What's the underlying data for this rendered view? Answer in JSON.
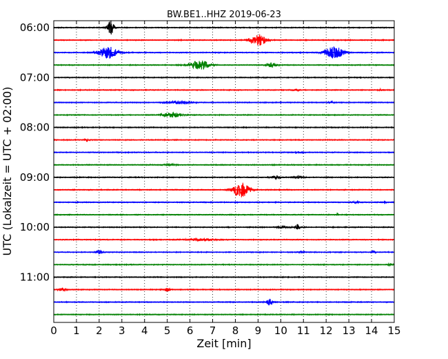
{
  "chart_data": {
    "type": "line",
    "title": "BW.BE1..HHZ 2019-06-23",
    "xlabel": "Zeit  [min]",
    "ylabel": "UTC (Lokalzeit = UTC + 02:00)",
    "xlim": [
      0,
      15
    ],
    "x_ticks": [
      "0",
      "1",
      "2",
      "3",
      "4",
      "5",
      "6",
      "7",
      "8",
      "9",
      "10",
      "11",
      "12",
      "13",
      "14",
      "15"
    ],
    "y_tick_labels": [
      "06:00",
      "07:00",
      "08:00",
      "09:00",
      "10:00",
      "11:00"
    ],
    "grid": "vertical dotted",
    "colors": [
      "#000000",
      "#ff0000",
      "#0000ff",
      "#008000"
    ],
    "series": [
      {
        "name": "06:00",
        "color": "#000000",
        "events": [
          {
            "t": 2.5,
            "amp": 1.0,
            "w": 0.1
          }
        ]
      },
      {
        "name": "06:15",
        "color": "#ff0000",
        "events": [
          {
            "t": 9.0,
            "amp": 0.75,
            "w": 0.25
          }
        ]
      },
      {
        "name": "06:30",
        "color": "#0000ff",
        "events": [
          {
            "t": 2.4,
            "amp": 0.75,
            "w": 0.3
          },
          {
            "t": 12.35,
            "amp": 0.75,
            "w": 0.3
          }
        ]
      },
      {
        "name": "06:45",
        "color": "#008000",
        "events": [
          {
            "t": 6.45,
            "amp": 0.6,
            "w": 0.3
          },
          {
            "t": 9.6,
            "amp": 0.3,
            "w": 0.15
          }
        ]
      },
      {
        "name": "07:00",
        "color": "#000000",
        "events": []
      },
      {
        "name": "07:15",
        "color": "#ff0000",
        "events": [
          {
            "t": 10.7,
            "amp": 0.12,
            "w": 0.1
          },
          {
            "t": 14.4,
            "amp": 0.12,
            "w": 0.05
          }
        ]
      },
      {
        "name": "07:30",
        "color": "#0000ff",
        "events": [
          {
            "t": 5.5,
            "amp": 0.2,
            "w": 0.35
          },
          {
            "t": 12.2,
            "amp": 0.1,
            "w": 0.1
          }
        ]
      },
      {
        "name": "07:45",
        "color": "#008000",
        "events": [
          {
            "t": 5.2,
            "amp": 0.3,
            "w": 0.3
          }
        ]
      },
      {
        "name": "08:00",
        "color": "#000000",
        "events": []
      },
      {
        "name": "08:15",
        "color": "#ff0000",
        "events": [
          {
            "t": 1.5,
            "amp": 0.12,
            "w": 0.1
          }
        ]
      },
      {
        "name": "08:30",
        "color": "#0000ff",
        "events": [
          {
            "t": 10.8,
            "amp": 0.08,
            "w": 0.1
          }
        ]
      },
      {
        "name": "08:45",
        "color": "#008000",
        "events": [
          {
            "t": 5.1,
            "amp": 0.1,
            "w": 0.2
          }
        ]
      },
      {
        "name": "09:00",
        "color": "#000000",
        "events": [
          {
            "t": 9.8,
            "amp": 0.2,
            "w": 0.15
          },
          {
            "t": 10.8,
            "amp": 0.15,
            "w": 0.15
          }
        ]
      },
      {
        "name": "09:15",
        "color": "#ff0000",
        "events": [
          {
            "t": 8.25,
            "amp": 1.0,
            "w": 0.25
          }
        ]
      },
      {
        "name": "09:30",
        "color": "#0000ff",
        "events": [
          {
            "t": 13.3,
            "amp": 0.1,
            "w": 0.15
          },
          {
            "t": 14.6,
            "amp": 0.3,
            "w": 0.03
          }
        ]
      },
      {
        "name": "09:45",
        "color": "#008000",
        "events": [
          {
            "t": 12.5,
            "amp": 0.15,
            "w": 0.03
          }
        ]
      },
      {
        "name": "10:00",
        "color": "#000000",
        "events": [
          {
            "t": 10.75,
            "amp": 0.35,
            "w": 0.06
          },
          {
            "t": 10.2,
            "amp": 0.1,
            "w": 0.3
          }
        ]
      },
      {
        "name": "10:15",
        "color": "#ff0000",
        "events": [
          {
            "t": 6.5,
            "amp": 0.12,
            "w": 0.5
          }
        ]
      },
      {
        "name": "10:30",
        "color": "#0000ff",
        "events": [
          {
            "t": 2.0,
            "amp": 0.25,
            "w": 0.1
          },
          {
            "t": 14.1,
            "amp": 0.2,
            "w": 0.06
          },
          {
            "t": 10.9,
            "amp": 0.1,
            "w": 0.08
          }
        ]
      },
      {
        "name": "10:45",
        "color": "#008000",
        "events": [
          {
            "t": 14.8,
            "amp": 0.12,
            "w": 0.08
          }
        ]
      },
      {
        "name": "11:00",
        "color": "#000000",
        "events": []
      },
      {
        "name": "11:15",
        "color": "#ff0000",
        "events": [
          {
            "t": 0.4,
            "amp": 0.2,
            "w": 0.12
          },
          {
            "t": 5.0,
            "amp": 0.2,
            "w": 0.1
          }
        ]
      },
      {
        "name": "11:30",
        "color": "#0000ff",
        "events": [
          {
            "t": 9.5,
            "amp": 0.4,
            "w": 0.1
          }
        ]
      },
      {
        "name": "11:45",
        "color": "#008000",
        "events": []
      }
    ]
  }
}
